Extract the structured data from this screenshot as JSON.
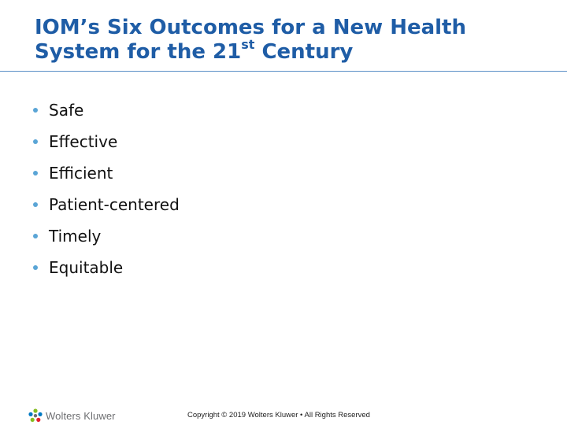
{
  "slide": {
    "title_line1": "IOM’s Six Outcomes for a New Health",
    "title_line2_prefix": "System for the 21",
    "title_line2_sup": "st",
    "title_line2_suffix": " Century",
    "bullets": [
      {
        "label": "Safe"
      },
      {
        "label": "Effective"
      },
      {
        "label": "Efficient"
      },
      {
        "label": "Patient-centered"
      },
      {
        "label": "Timely"
      },
      {
        "label": "Equitable"
      }
    ]
  },
  "footer": {
    "logo_text": "Wolters Kluwer",
    "copyright": "Copyright © 2019 Wolters Kluwer • All Rights Reserved"
  },
  "colors": {
    "title": "#1f5da6",
    "bullet_dot": "#5aa5d6",
    "rule": "#5b8fc7"
  },
  "icons": {
    "logo": "wolters-kluwer-logo-icon"
  }
}
